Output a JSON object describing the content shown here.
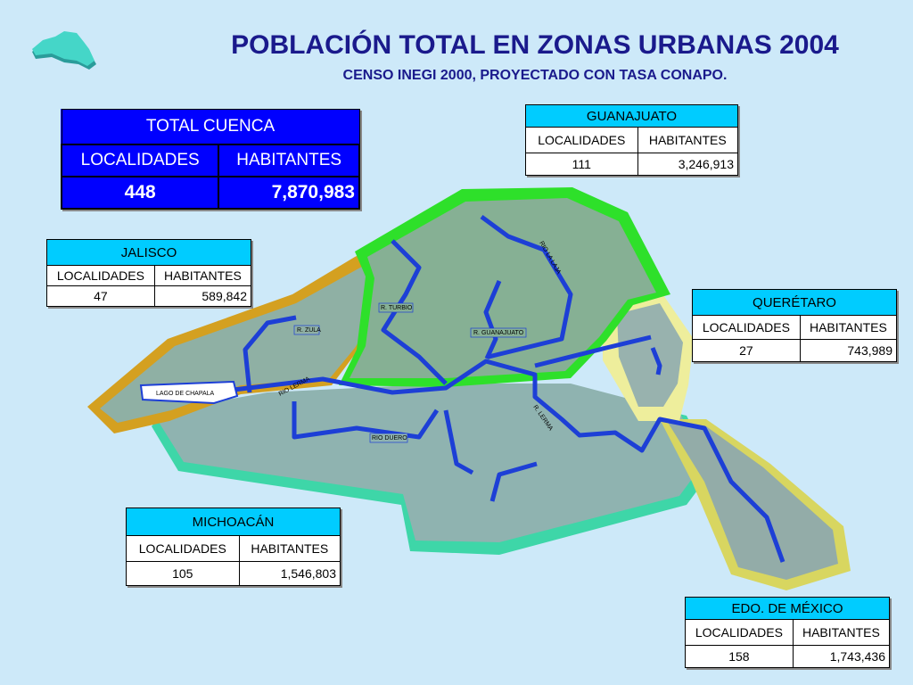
{
  "header": {
    "title": "POBLACIÓN TOTAL EN ZONAS URBANAS 2004",
    "subtitle": "CENSO INEGI 2000, PROYECTADO CON TASA CONAPO."
  },
  "tables": [
    {
      "title": "TOTAL CUENCA",
      "columns": [
        "LOCALIDADES",
        "HABITANTES"
      ],
      "row": [
        "448",
        "7,870,983"
      ]
    },
    {
      "title": "GUANAJUATO",
      "columns": [
        "LOCALIDADES",
        "HABITANTES"
      ],
      "row": [
        "111",
        "3,246,913"
      ]
    },
    {
      "title": "JALISCO",
      "columns": [
        "LOCALIDADES",
        "HABITANTES"
      ],
      "row": [
        "47",
        "589,842"
      ]
    },
    {
      "title": "QUERÉTARO",
      "columns": [
        "LOCALIDADES",
        "HABITANTES"
      ],
      "row": [
        "27",
        "743,989"
      ]
    },
    {
      "title": "MICHOACÁN",
      "columns": [
        "LOCALIDADES",
        "HABITANTES"
      ],
      "row": [
        "105",
        "1,546,803"
      ]
    },
    {
      "title": "EDO. DE MÉXICO",
      "columns": [
        "LOCALIDADES",
        "HABITANTES"
      ],
      "row": [
        "158",
        "1,743,436"
      ]
    }
  ],
  "map": {
    "labels": [
      "LAGO DE  CHAPALA",
      "R. ZULA",
      "R. TURBIO",
      "R. GUANAJUATO",
      "RIO LA LAJA",
      "RIO LERMA",
      "R. LERMA",
      "RIO DUERO"
    ]
  }
}
